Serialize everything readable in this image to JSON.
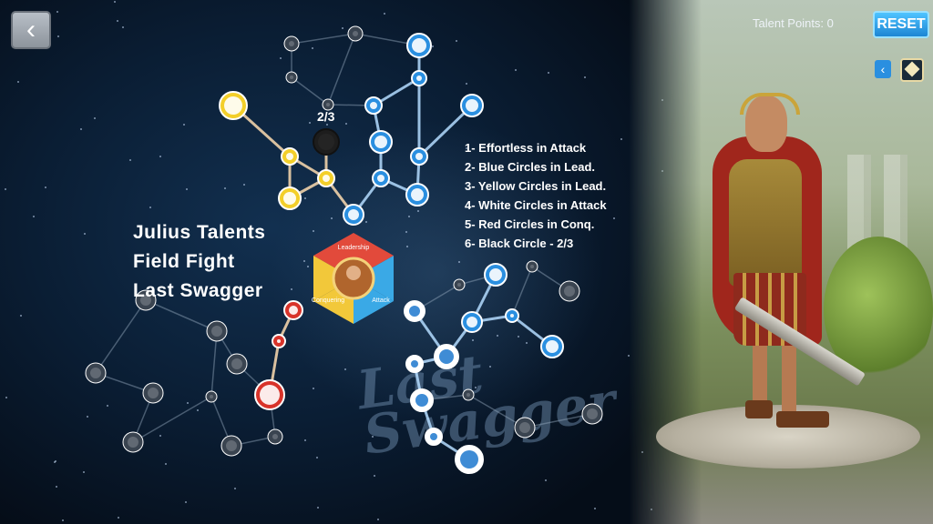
{
  "header": {
    "back_icon": "chevron-left-icon",
    "talent_points": "Talent Points: 0",
    "reset_label": "RESET",
    "small_back_icon": "chevron-left-icon",
    "cube_icon": "cube-icon"
  },
  "overlay": {
    "title_lines": [
      "Julius Talents",
      "Field Fight",
      "Last Swagger"
    ],
    "legend": [
      "1- Effortless in Attack",
      "2- Blue Circles in Lead.",
      "3- Yellow Circles in Lead.",
      "4- White Circles in Attack",
      "5- Red Circles in Conq.",
      "6- Black Circle - 2/3"
    ],
    "node_counter": "2/3",
    "watermark_lines": [
      "Last",
      "Swagger"
    ]
  },
  "wheel": {
    "segments": [
      "Leadership",
      "Conquering",
      "Attack"
    ],
    "colors": {
      "leadership": "#e24a3b",
      "conquering": "#f2c83a",
      "attack": "#3aa9e6"
    }
  },
  "colors": {
    "red_node": "#d8332a",
    "yellow_node": "#f3cf2a",
    "blue_node": "#2a8fe0",
    "white_node": "#ffffff",
    "grey_node": "#6b737c",
    "reset": "#2aa0f0"
  }
}
